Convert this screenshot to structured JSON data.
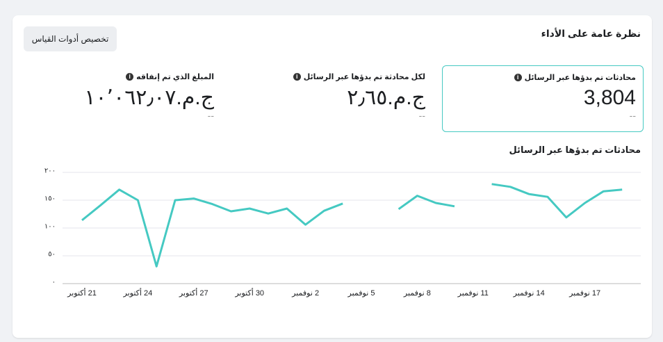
{
  "header": {
    "title": "نظرة عامة على الأداء",
    "button": "تخصيص أدوات القياس"
  },
  "metrics": [
    {
      "label": "محادثات تم بدؤها عبر الرسائل",
      "value": "3,804",
      "change": "--"
    },
    {
      "label": "لكل محادثة تم بدؤها عبر الرسائل",
      "value": "ج.م.٢٫٦٥",
      "change": "--"
    },
    {
      "label": "المبلغ الذي تم إنفاقه",
      "value": "ج.م.١٠٬٠٦٢٫٠٧",
      "change": "--"
    }
  ],
  "chart_data": {
    "type": "line",
    "title": "محادثات تم بدؤها عبر الرسائل",
    "color": "#45c9c2",
    "grid": true,
    "categories": [
      "21 أكتوبر",
      null,
      null,
      "24 أكتوبر",
      null,
      null,
      "27 أكتوبر",
      null,
      null,
      "30 أكتوبر",
      null,
      null,
      "2 نوفمبر",
      null,
      null,
      "5 نوفمبر",
      null,
      null,
      "8 نوفمبر",
      null,
      null,
      "11 نوفمبر",
      null,
      null,
      "14 نوفمبر",
      null,
      null,
      "17 نوفمبر",
      null,
      null
    ],
    "values": [
      114,
      141,
      169,
      150,
      31,
      150,
      153,
      143,
      130,
      135,
      126,
      135,
      106,
      131,
      144,
      null,
      null,
      134,
      158,
      145,
      139,
      null,
      179,
      174,
      161,
      156,
      119,
      145,
      166,
      169
    ],
    "ylim": [
      0,
      200
    ],
    "yticks": [
      {
        "value": 0,
        "label": "٠"
      },
      {
        "value": 50,
        "label": "٥٠"
      },
      {
        "value": 100,
        "label": "١٠٠"
      },
      {
        "value": 150,
        "label": "١٥٠"
      },
      {
        "value": 200,
        "label": "٢٠٠"
      }
    ]
  }
}
